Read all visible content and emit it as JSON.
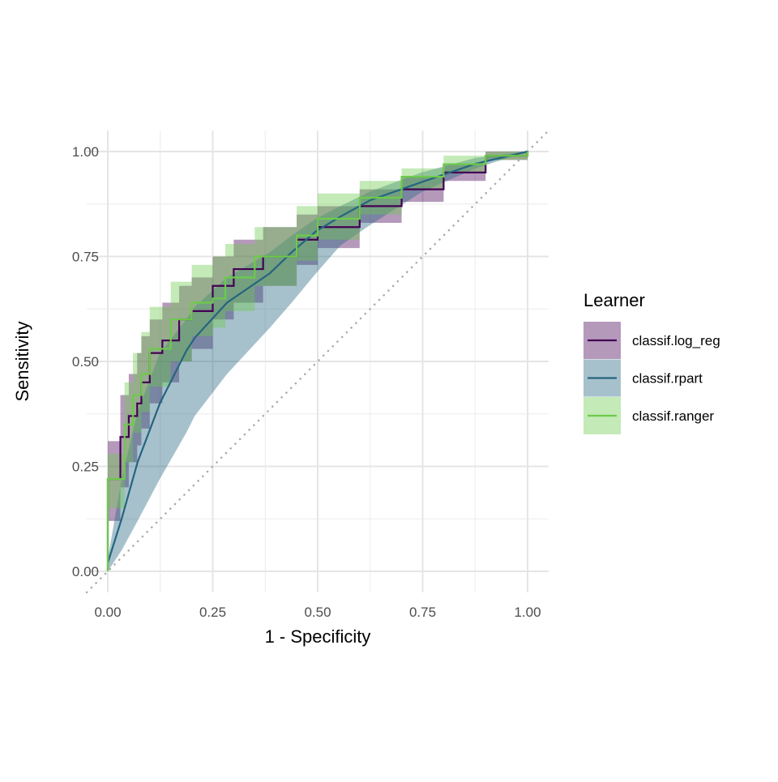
{
  "chart_data": {
    "type": "line",
    "title": "",
    "xlabel": "1 - Specificity",
    "ylabel": "Sensitivity",
    "xlim": [
      -0.05,
      1.05
    ],
    "ylim": [
      -0.05,
      1.05
    ],
    "x_ticks": [
      "0.00",
      "0.25",
      "0.50",
      "0.75",
      "1.00"
    ],
    "y_ticks": [
      "0.00",
      "0.25",
      "0.50",
      "0.75",
      "1.00"
    ],
    "x_tick_values": [
      0,
      0.25,
      0.5,
      0.75,
      1
    ],
    "y_tick_values": [
      0,
      0.25,
      0.5,
      0.75,
      1
    ],
    "grid": true,
    "reference_line": "diagonal dotted",
    "legend": {
      "title": "Learner",
      "position": "right"
    },
    "series": [
      {
        "name": "classif.log_reg",
        "color": "#440154",
        "step": true,
        "x": [
          0,
          0,
          0.03,
          0.03,
          0.05,
          0.07,
          0.08,
          0.1,
          0.13,
          0.17,
          0.2,
          0.25,
          0.3,
          0.37,
          0.45,
          0.5,
          0.6,
          0.7,
          0.8,
          0.9,
          1
        ],
        "y": [
          0,
          0.22,
          0.22,
          0.32,
          0.37,
          0.4,
          0.45,
          0.52,
          0.55,
          0.6,
          0.62,
          0.68,
          0.72,
          0.75,
          0.79,
          0.82,
          0.87,
          0.91,
          0.95,
          0.99,
          1
        ],
        "lower": [
          0,
          0.12,
          0.12,
          0.2,
          0.26,
          0.3,
          0.34,
          0.4,
          0.45,
          0.5,
          0.53,
          0.6,
          0.64,
          0.68,
          0.73,
          0.77,
          0.83,
          0.88,
          0.93,
          0.98,
          1
        ],
        "upper": [
          0,
          0.31,
          0.31,
          0.42,
          0.47,
          0.52,
          0.56,
          0.6,
          0.64,
          0.68,
          0.7,
          0.75,
          0.79,
          0.82,
          0.85,
          0.87,
          0.91,
          0.94,
          0.97,
          1,
          1
        ]
      },
      {
        "name": "classif.rpart",
        "color": "#24657F",
        "step": false,
        "x": [
          0,
          0.033,
          0.071,
          0.124,
          0.187,
          0.207,
          0.284,
          0.386,
          0.438,
          0.496,
          0.554,
          0.625,
          0.747,
          0.876,
          1
        ],
        "y": [
          0.02,
          0.125,
          0.26,
          0.4,
          0.525,
          0.556,
          0.64,
          0.71,
          0.76,
          0.81,
          0.845,
          0.884,
          0.927,
          0.971,
          1
        ],
        "lower": [
          0,
          0.05,
          0.12,
          0.22,
          0.33,
          0.37,
          0.47,
          0.58,
          0.64,
          0.71,
          0.776,
          0.825,
          0.903,
          0.96,
          1
        ],
        "upper": [
          0.03,
          0.22,
          0.38,
          0.52,
          0.6,
          0.63,
          0.7,
          0.76,
          0.8,
          0.84,
          0.87,
          0.905,
          0.95,
          0.985,
          1
        ]
      },
      {
        "name": "classif.ranger",
        "color": "#6CCB4A",
        "step": true,
        "x": [
          0,
          0,
          0.03,
          0.04,
          0.06,
          0.08,
          0.1,
          0.15,
          0.2,
          0.25,
          0.28,
          0.35,
          0.45,
          0.5,
          0.6,
          0.7,
          0.8,
          0.9,
          1
        ],
        "y": [
          0,
          0.22,
          0.22,
          0.35,
          0.42,
          0.47,
          0.53,
          0.6,
          0.64,
          0.65,
          0.7,
          0.75,
          0.8,
          0.84,
          0.89,
          0.94,
          0.97,
          0.99,
          1
        ],
        "lower": [
          0,
          0.15,
          0.15,
          0.26,
          0.33,
          0.38,
          0.44,
          0.5,
          0.56,
          0.58,
          0.62,
          0.68,
          0.74,
          0.79,
          0.85,
          0.91,
          0.95,
          0.98,
          1
        ],
        "upper": [
          0,
          0.28,
          0.28,
          0.45,
          0.52,
          0.57,
          0.63,
          0.69,
          0.73,
          0.75,
          0.78,
          0.82,
          0.87,
          0.9,
          0.93,
          0.96,
          0.99,
          1,
          1
        ]
      }
    ]
  }
}
